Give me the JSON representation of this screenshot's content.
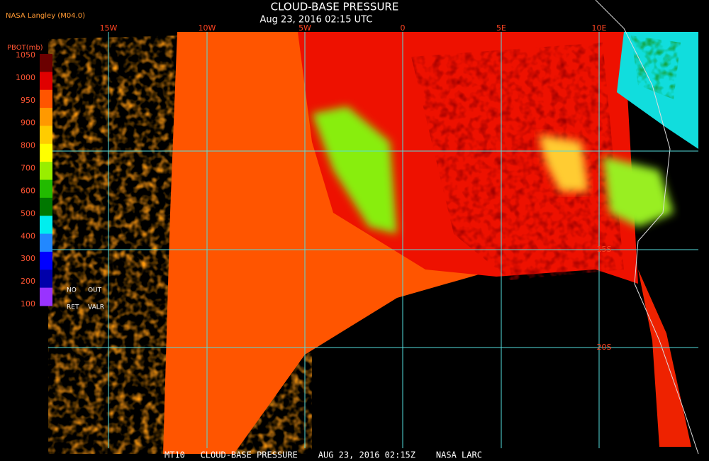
{
  "header": {
    "source": "NASA Langley (M04.0)",
    "title": "CLOUD-BASE PRESSURE",
    "timestamp": "Aug 23, 2016 02:15 UTC"
  },
  "map": {
    "longitude_labels": [
      "15W",
      "10W",
      "5W",
      "0",
      "5E",
      "10E"
    ],
    "latitude_labels": [
      "15S",
      "20S"
    ]
  },
  "legend": {
    "title": "PBOT(mb)",
    "values": [
      "1050",
      "1000",
      "950",
      "900",
      "800",
      "700",
      "600",
      "500",
      "400",
      "300",
      "200",
      "100"
    ],
    "notes": [
      "NO",
      "OUT",
      "RET",
      "VALR"
    ]
  },
  "footer": "MT10   CLOUD-BASE PRESSURE    AUG 23, 2016 02:15Z    NASA LARC"
}
